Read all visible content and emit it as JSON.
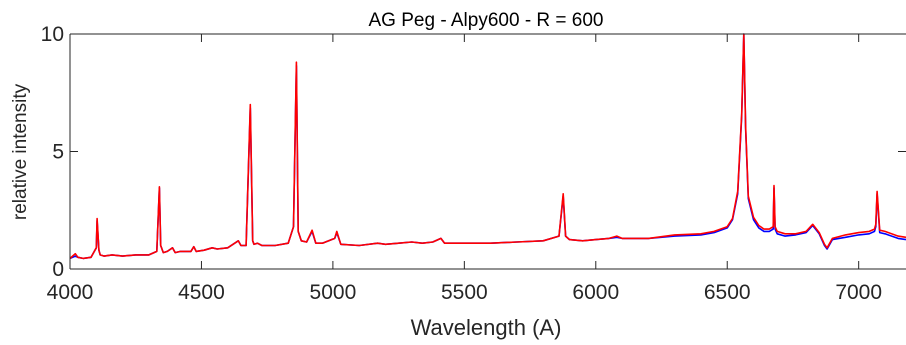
{
  "chart_data": {
    "type": "line",
    "title": "AG Peg  - Alpy600 - R = 600",
    "xlabel": "Wavelength (A)",
    "ylabel": "relative intensity",
    "xlim": [
      4000,
      7180
    ],
    "ylim": [
      0,
      10
    ],
    "xticks": [
      4000,
      4500,
      5000,
      5500,
      6000,
      6500,
      7000
    ],
    "yticks": [
      0,
      5,
      10
    ],
    "grid": false,
    "colors": {
      "series1": "#0000ff",
      "series2": "#ff0000",
      "axis": "#262626"
    },
    "series": [
      {
        "color": "#0000ff",
        "x": [
          4000,
          4020,
          4030,
          4050,
          4080,
          4100,
          4103,
          4110,
          4115,
          4130,
          4160,
          4200,
          4250,
          4300,
          4330,
          4340,
          4345,
          4355,
          4370,
          4390,
          4400,
          4420,
          4460,
          4471,
          4480,
          4510,
          4541,
          4560,
          4600,
          4640,
          4650,
          4670,
          4686,
          4695,
          4700,
          4713,
          4730,
          4780,
          4830,
          4850,
          4861,
          4868,
          4880,
          4900,
          4921,
          4935,
          4960,
          5007,
          5015,
          5030,
          5100,
          5170,
          5200,
          5250,
          5300,
          5340,
          5380,
          5411,
          5425,
          5470,
          5600,
          5700,
          5800,
          5860,
          5876,
          5885,
          5900,
          5950,
          6000,
          6050,
          6080,
          6100,
          6200,
          6300,
          6400,
          6450,
          6500,
          6520,
          6540,
          6555,
          6563,
          6570,
          6580,
          6600,
          6620,
          6640,
          6660,
          6675,
          6678,
          6682,
          6690,
          6720,
          6760,
          6800,
          6825,
          6850,
          6870,
          6880,
          6900,
          6950,
          7000,
          7040,
          7060,
          7065,
          7070,
          7080,
          7100,
          7150,
          7180
        ],
        "y": [
          0.45,
          0.55,
          0.5,
          0.45,
          0.5,
          0.9,
          2.05,
          0.8,
          0.6,
          0.55,
          0.6,
          0.55,
          0.6,
          0.6,
          0.75,
          3.45,
          1.0,
          0.7,
          0.75,
          0.9,
          0.7,
          0.75,
          0.75,
          0.95,
          0.75,
          0.8,
          0.9,
          0.85,
          0.9,
          1.2,
          1.0,
          1.0,
          6.85,
          1.2,
          1.05,
          1.1,
          1.0,
          1.0,
          1.1,
          1.8,
          8.65,
          1.6,
          1.2,
          1.15,
          1.6,
          1.1,
          1.1,
          1.3,
          1.55,
          1.05,
          1.0,
          1.1,
          1.05,
          1.1,
          1.15,
          1.1,
          1.15,
          1.3,
          1.1,
          1.1,
          1.1,
          1.15,
          1.2,
          1.4,
          3.1,
          1.4,
          1.25,
          1.2,
          1.25,
          1.3,
          1.35,
          1.3,
          1.3,
          1.4,
          1.45,
          1.55,
          1.75,
          2.1,
          3.2,
          6.5,
          10.0,
          6.0,
          3.0,
          2.1,
          1.75,
          1.6,
          1.6,
          1.7,
          3.45,
          1.7,
          1.5,
          1.4,
          1.45,
          1.55,
          1.85,
          1.5,
          1.0,
          0.85,
          1.25,
          1.35,
          1.45,
          1.5,
          1.6,
          1.8,
          3.2,
          1.55,
          1.5,
          1.3,
          1.25
        ]
      },
      {
        "color": "#ff0000",
        "x": [
          4000,
          4020,
          4030,
          4050,
          4080,
          4100,
          4103,
          4110,
          4115,
          4130,
          4160,
          4200,
          4250,
          4300,
          4330,
          4340,
          4345,
          4355,
          4370,
          4390,
          4400,
          4420,
          4460,
          4471,
          4480,
          4510,
          4541,
          4560,
          4600,
          4640,
          4650,
          4670,
          4686,
          4695,
          4700,
          4713,
          4730,
          4780,
          4830,
          4850,
          4861,
          4868,
          4880,
          4900,
          4921,
          4935,
          4960,
          5007,
          5015,
          5030,
          5100,
          5170,
          5200,
          5250,
          5300,
          5340,
          5380,
          5411,
          5425,
          5470,
          5600,
          5700,
          5800,
          5860,
          5876,
          5885,
          5900,
          5950,
          6000,
          6050,
          6080,
          6100,
          6200,
          6300,
          6400,
          6450,
          6500,
          6520,
          6540,
          6555,
          6563,
          6570,
          6580,
          6600,
          6620,
          6640,
          6660,
          6675,
          6678,
          6682,
          6690,
          6720,
          6760,
          6800,
          6825,
          6850,
          6870,
          6880,
          6900,
          6950,
          7000,
          7040,
          7060,
          7065,
          7070,
          7080,
          7100,
          7150,
          7180
        ],
        "y": [
          0.45,
          0.65,
          0.5,
          0.45,
          0.5,
          0.9,
          2.15,
          0.8,
          0.6,
          0.55,
          0.6,
          0.55,
          0.6,
          0.6,
          0.75,
          3.5,
          1.0,
          0.7,
          0.75,
          0.9,
          0.7,
          0.75,
          0.75,
          0.95,
          0.75,
          0.8,
          0.9,
          0.85,
          0.9,
          1.2,
          1.0,
          1.0,
          7.0,
          1.2,
          1.05,
          1.1,
          1.0,
          1.0,
          1.1,
          1.8,
          8.8,
          1.6,
          1.2,
          1.15,
          1.65,
          1.1,
          1.1,
          1.3,
          1.6,
          1.05,
          1.0,
          1.1,
          1.05,
          1.1,
          1.15,
          1.1,
          1.15,
          1.3,
          1.1,
          1.1,
          1.1,
          1.15,
          1.2,
          1.4,
          3.2,
          1.4,
          1.25,
          1.2,
          1.25,
          1.3,
          1.4,
          1.3,
          1.3,
          1.45,
          1.5,
          1.6,
          1.8,
          2.15,
          3.3,
          6.6,
          10.0,
          6.1,
          3.1,
          2.2,
          1.85,
          1.7,
          1.7,
          1.8,
          3.55,
          1.8,
          1.6,
          1.5,
          1.5,
          1.6,
          1.9,
          1.55,
          1.05,
          0.9,
          1.3,
          1.45,
          1.55,
          1.6,
          1.7,
          1.9,
          3.3,
          1.65,
          1.6,
          1.4,
          1.35
        ]
      }
    ]
  }
}
